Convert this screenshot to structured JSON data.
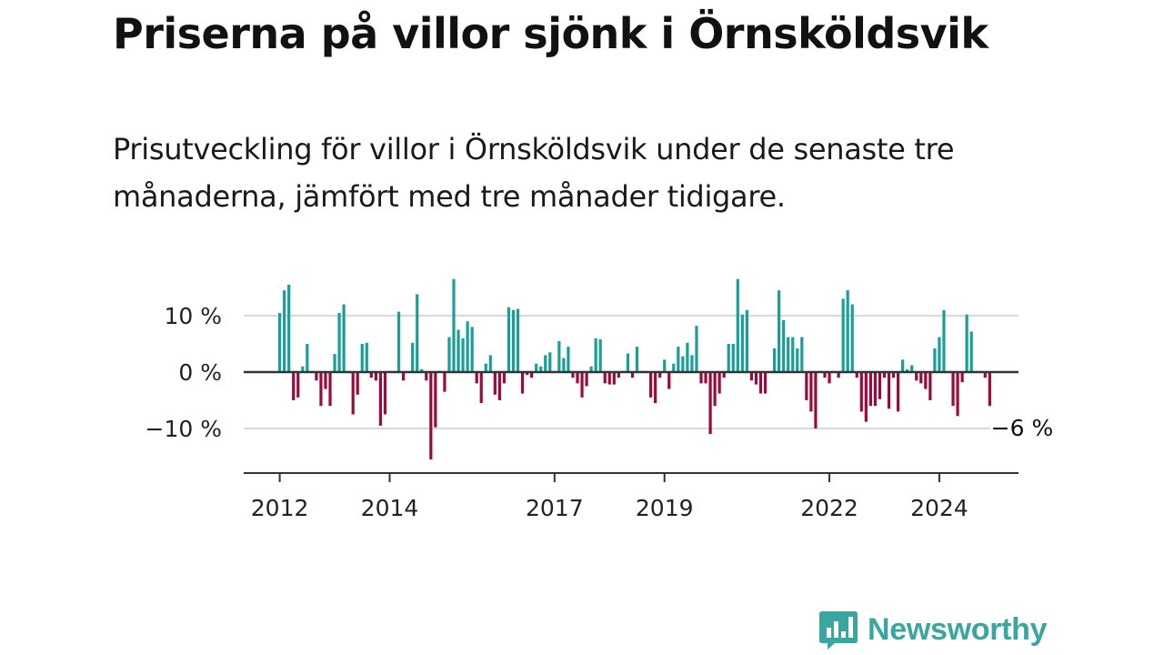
{
  "header": {
    "title": "Priserna på villor sjönk i Örnsköldsvik",
    "subtitle": "Prisutveckling för villor i Örnsköldsvik under de senaste tre månaderna, jämfört med tre månader tidigare."
  },
  "brand": {
    "name": "Newsworthy",
    "icon": "newsworthy-chart-bubble-icon",
    "color": "#3aa6a0"
  },
  "chart_data": {
    "type": "bar",
    "x_unit": "month",
    "x_start": "2012-01",
    "y_unit": "%",
    "ylim": [
      -18,
      19
    ],
    "y_ticks": [
      10,
      0,
      -10
    ],
    "y_tick_labels": [
      "10 %",
      "0 %",
      "−10 %"
    ],
    "x_ticks": [
      "2012",
      "2014",
      "2017",
      "2019",
      "2022",
      "2024"
    ],
    "x_tick_years": [
      2012,
      2014,
      2017,
      2019,
      2022,
      2024
    ],
    "grid": true,
    "positive_color": "#1b9e98",
    "negative_color": "#9b0a3c",
    "annotation": {
      "label": "−6 %",
      "value": -6
    },
    "values": [
      10.5,
      14.5,
      15.5,
      -5.0,
      -4.5,
      1.0,
      5.0,
      0.2,
      -1.5,
      -6.0,
      -3.0,
      -6.0,
      3.2,
      10.5,
      12.0,
      0.2,
      -7.5,
      -4.0,
      5.0,
      5.2,
      -1.0,
      -1.5,
      -9.5,
      -7.5,
      0.2,
      0.2,
      10.7,
      -1.5,
      0.2,
      5.2,
      13.8,
      0.5,
      -1.5,
      -15.5,
      -9.8,
      0.2,
      -3.5,
      6.2,
      16.5,
      7.5,
      6.0,
      9.0,
      8.0,
      -2.0,
      -5.5,
      1.5,
      3.0,
      -4.0,
      -5.0,
      -2.0,
      11.5,
      11.0,
      11.2,
      -3.8,
      -0.5,
      -1.0,
      1.5,
      1.0,
      3.0,
      3.5,
      0.2,
      5.5,
      2.5,
      4.5,
      -1.0,
      -2.0,
      -4.5,
      -2.5,
      1.0,
      6.0,
      5.8,
      -2.0,
      -2.2,
      -2.2,
      -1.0,
      0.2,
      3.3,
      -1.0,
      4.5,
      0.2,
      0.2,
      -4.5,
      -5.5,
      -1.0,
      2.2,
      -3.0,
      1.5,
      4.5,
      2.8,
      5.2,
      3.0,
      8.2,
      -2.0,
      -2.0,
      -11.0,
      -6.0,
      -3.8,
      -1.0,
      5.0,
      5.0,
      16.5,
      10.2,
      11.0,
      -1.5,
      -2.2,
      -3.8,
      -3.8,
      0.2,
      4.2,
      14.5,
      9.2,
      6.2,
      6.2,
      4.2,
      6.2,
      -5.0,
      -7.0,
      -10.0,
      0.2,
      -1.0,
      -2.0,
      0.2,
      -1.0,
      13.0,
      14.5,
      12.0,
      -1.0,
      -7.0,
      -8.8,
      -6.0,
      -6.0,
      -4.8,
      -1.0,
      -6.5,
      -1.0,
      -7.0,
      2.2,
      0.5,
      1.2,
      -1.5,
      -2.0,
      -3.0,
      -5.0,
      4.2,
      6.2,
      11.0,
      0.2,
      -6.0,
      -7.8,
      -1.8,
      10.2,
      7.2,
      0.2,
      0.2,
      -1.0,
      -6.0
    ]
  }
}
